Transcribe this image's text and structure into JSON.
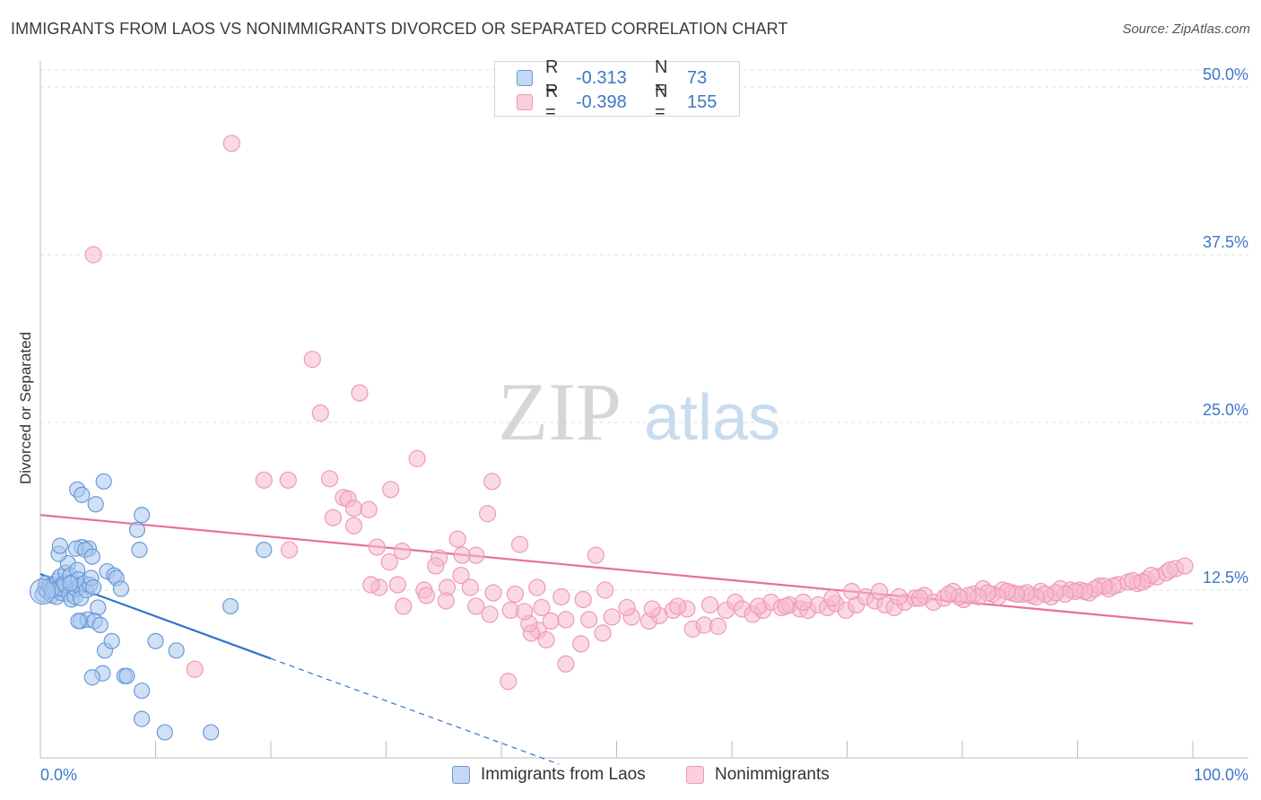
{
  "header": {
    "title": "IMMIGRANTS FROM LAOS VS NONIMMIGRANTS DIVORCED OR SEPARATED CORRELATION CHART",
    "source": "Source: ZipAtlas.com"
  },
  "watermark": {
    "zip": "ZIP",
    "atlas": "atlas"
  },
  "legend": {
    "rows": [
      {
        "r_label": "R =",
        "r_value": "-0.313",
        "n_label": "N =",
        "n_value": "73"
      },
      {
        "r_label": "R =",
        "r_value": "-0.398",
        "n_label": "N =",
        "n_value": "155"
      }
    ]
  },
  "bottom_legend": {
    "laos": "Immigrants from Laos",
    "non": "Nonimmigrants"
  },
  "colors": {
    "laos_fill": "#a9c8ee",
    "laos_stroke": "#6a9ad6",
    "laos_line": "#2f72cc",
    "non_fill": "#f6b9cc",
    "non_stroke": "#ef9ab5",
    "non_line": "#e8709a",
    "tick_text": "#3d78c4",
    "grid": "#dcdcdc"
  },
  "chart_data": {
    "type": "scatter",
    "title": "IMMIGRANTS FROM LAOS VS NONIMMIGRANTS DIVORCED OR SEPARATED CORRELATION CHART",
    "xlabel": "",
    "ylabel": "Divorced or Separated",
    "xlim": [
      0,
      100
    ],
    "ylim": [
      0,
      52
    ],
    "x_tick_labels": [
      "0.0%",
      "100.0%"
    ],
    "y_ticks": [
      12.5,
      25.0,
      37.5,
      50.0
    ],
    "y_tick_labels": [
      "12.5%",
      "25.0%",
      "37.5%",
      "50.0%"
    ],
    "grid": true,
    "legend_position": "top-center",
    "series": [
      {
        "name": "Immigrants from Laos",
        "r": -0.313,
        "n": 73,
        "trend": {
          "x0": 0,
          "y0": 13.7,
          "x1": 20,
          "y1": 7.4,
          "dash_to_x": 45
        },
        "points": [
          [
            0.2,
            12.2
          ],
          [
            0.4,
            12.6
          ],
          [
            0.5,
            13.0
          ],
          [
            0.6,
            12.4
          ],
          [
            0.8,
            12.8
          ],
          [
            1.0,
            12.1
          ],
          [
            1.2,
            12.9
          ],
          [
            1.3,
            12.5
          ],
          [
            1.4,
            12.0
          ],
          [
            1.5,
            13.2
          ],
          [
            1.6,
            12.7
          ],
          [
            1.7,
            13.5
          ],
          [
            1.8,
            12.3
          ],
          [
            1.9,
            12.6
          ],
          [
            2.0,
            13.0
          ],
          [
            2.1,
            12.9
          ],
          [
            2.2,
            13.8
          ],
          [
            2.4,
            14.5
          ],
          [
            2.5,
            12.2
          ],
          [
            2.6,
            13.6
          ],
          [
            2.7,
            11.8
          ],
          [
            2.8,
            13.1
          ],
          [
            3.0,
            12.0
          ],
          [
            3.1,
            12.6
          ],
          [
            3.2,
            14.0
          ],
          [
            3.3,
            13.3
          ],
          [
            3.4,
            12.8
          ],
          [
            3.5,
            11.9
          ],
          [
            3.6,
            15.7
          ],
          [
            3.8,
            13.0
          ],
          [
            4.0,
            12.5
          ],
          [
            4.2,
            15.6
          ],
          [
            4.3,
            12.9
          ],
          [
            4.4,
            13.4
          ],
          [
            4.6,
            12.7
          ],
          [
            1.6,
            15.2
          ],
          [
            1.7,
            15.8
          ],
          [
            3.1,
            15.6
          ],
          [
            3.9,
            15.5
          ],
          [
            4.5,
            15.0
          ],
          [
            3.2,
            20.0
          ],
          [
            3.6,
            19.6
          ],
          [
            4.8,
            18.9
          ],
          [
            5.5,
            20.6
          ],
          [
            5.8,
            13.9
          ],
          [
            6.4,
            13.6
          ],
          [
            6.6,
            13.4
          ],
          [
            7.0,
            12.6
          ],
          [
            5.0,
            11.2
          ],
          [
            3.5,
            10.2
          ],
          [
            4.1,
            10.3
          ],
          [
            4.7,
            10.2
          ],
          [
            5.2,
            9.9
          ],
          [
            8.4,
            17.0
          ],
          [
            8.6,
            15.5
          ],
          [
            8.8,
            18.1
          ],
          [
            5.6,
            8.0
          ],
          [
            6.2,
            8.7
          ],
          [
            10.0,
            8.7
          ],
          [
            11.8,
            8.0
          ],
          [
            5.4,
            6.3
          ],
          [
            4.5,
            6.0
          ],
          [
            7.3,
            6.1
          ],
          [
            7.5,
            6.1
          ],
          [
            8.8,
            5.0
          ],
          [
            8.8,
            2.9
          ],
          [
            10.8,
            1.9
          ],
          [
            14.8,
            1.9
          ],
          [
            16.5,
            11.3
          ],
          [
            19.4,
            15.5
          ],
          [
            3.3,
            10.2
          ],
          [
            2.6,
            13.0
          ],
          [
            1.0,
            12.5
          ]
        ]
      },
      {
        "name": "Nonimmigrants",
        "r": -0.398,
        "n": 155,
        "trend": {
          "x0": 0,
          "y0": 18.1,
          "x1": 100,
          "y1": 10.0
        },
        "points": [
          [
            16.6,
            45.8
          ],
          [
            4.6,
            37.5
          ],
          [
            23.6,
            29.7
          ],
          [
            27.7,
            27.2
          ],
          [
            24.3,
            25.7
          ],
          [
            32.7,
            22.3
          ],
          [
            19.4,
            20.7
          ],
          [
            21.5,
            20.7
          ],
          [
            25.1,
            20.8
          ],
          [
            39.2,
            20.6
          ],
          [
            30.4,
            20.0
          ],
          [
            26.3,
            19.4
          ],
          [
            26.7,
            19.3
          ],
          [
            27.2,
            18.6
          ],
          [
            28.5,
            18.5
          ],
          [
            38.8,
            18.2
          ],
          [
            25.4,
            17.9
          ],
          [
            27.2,
            17.3
          ],
          [
            36.2,
            16.3
          ],
          [
            41.6,
            15.9
          ],
          [
            29.2,
            15.7
          ],
          [
            31.4,
            15.4
          ],
          [
            21.6,
            15.5
          ],
          [
            37.8,
            15.1
          ],
          [
            36.6,
            15.1
          ],
          [
            34.6,
            14.9
          ],
          [
            30.3,
            14.6
          ],
          [
            34.3,
            14.3
          ],
          [
            48.2,
            15.1
          ],
          [
            36.5,
            13.6
          ],
          [
            13.4,
            6.6
          ],
          [
            40.6,
            5.7
          ],
          [
            43.2,
            9.5
          ],
          [
            42.6,
            9.3
          ],
          [
            43.9,
            8.8
          ],
          [
            45.6,
            7.0
          ],
          [
            46.9,
            8.5
          ],
          [
            48.8,
            9.3
          ],
          [
            42.4,
            10.0
          ],
          [
            44.3,
            10.2
          ],
          [
            45.6,
            10.3
          ],
          [
            47.6,
            10.3
          ],
          [
            49.6,
            10.5
          ],
          [
            51.3,
            10.5
          ],
          [
            52.8,
            10.2
          ],
          [
            53.7,
            10.6
          ],
          [
            54.9,
            11.0
          ],
          [
            56.1,
            11.1
          ],
          [
            56.6,
            9.6
          ],
          [
            57.6,
            9.9
          ],
          [
            58.8,
            9.8
          ],
          [
            59.5,
            11.0
          ],
          [
            60.3,
            11.6
          ],
          [
            60.9,
            11.1
          ],
          [
            61.8,
            10.7
          ],
          [
            62.7,
            11.0
          ],
          [
            63.4,
            11.6
          ],
          [
            64.3,
            11.2
          ],
          [
            65.0,
            11.4
          ],
          [
            65.9,
            11.1
          ],
          [
            66.6,
            11.0
          ],
          [
            67.5,
            11.4
          ],
          [
            68.3,
            11.2
          ],
          [
            69.0,
            11.5
          ],
          [
            69.9,
            11.0
          ],
          [
            70.8,
            11.4
          ],
          [
            71.6,
            12.0
          ],
          [
            72.4,
            11.7
          ],
          [
            73.3,
            11.4
          ],
          [
            74.1,
            11.2
          ],
          [
            75.0,
            11.6
          ],
          [
            75.9,
            11.9
          ],
          [
            76.7,
            12.1
          ],
          [
            77.5,
            11.6
          ],
          [
            78.4,
            11.9
          ],
          [
            79.2,
            12.4
          ],
          [
            80.1,
            11.8
          ],
          [
            81.0,
            12.2
          ],
          [
            81.8,
            12.6
          ],
          [
            82.6,
            12.2
          ],
          [
            83.5,
            12.5
          ],
          [
            84.3,
            12.3
          ],
          [
            85.2,
            12.2
          ],
          [
            86.0,
            12.1
          ],
          [
            86.8,
            12.4
          ],
          [
            87.7,
            12.0
          ],
          [
            88.5,
            12.6
          ],
          [
            89.4,
            12.5
          ],
          [
            90.2,
            12.5
          ],
          [
            91.0,
            12.3
          ],
          [
            91.9,
            12.8
          ],
          [
            92.7,
            12.6
          ],
          [
            93.5,
            12.9
          ],
          [
            94.4,
            13.1
          ],
          [
            95.2,
            13.0
          ],
          [
            96.0,
            13.3
          ],
          [
            96.9,
            13.5
          ],
          [
            97.7,
            13.8
          ],
          [
            98.5,
            14.1
          ],
          [
            99.3,
            14.3
          ],
          [
            98.0,
            14.0
          ],
          [
            96.4,
            13.6
          ],
          [
            95.6,
            13.1
          ],
          [
            94.8,
            13.2
          ],
          [
            93.1,
            12.8
          ],
          [
            92.3,
            12.8
          ],
          [
            91.5,
            12.6
          ],
          [
            90.6,
            12.4
          ],
          [
            89.8,
            12.4
          ],
          [
            88.9,
            12.2
          ],
          [
            88.1,
            12.3
          ],
          [
            87.2,
            12.2
          ],
          [
            86.4,
            12.0
          ],
          [
            85.6,
            12.3
          ],
          [
            84.7,
            12.2
          ],
          [
            83.9,
            12.4
          ],
          [
            83.1,
            12.0
          ],
          [
            82.2,
            12.3
          ],
          [
            81.4,
            12.0
          ],
          [
            80.5,
            12.1
          ],
          [
            79.7,
            12.0
          ],
          [
            78.8,
            12.2
          ],
          [
            76.3,
            11.9
          ],
          [
            74.5,
            12.0
          ],
          [
            72.8,
            12.4
          ],
          [
            70.4,
            12.4
          ],
          [
            68.7,
            11.9
          ],
          [
            66.2,
            11.6
          ],
          [
            64.7,
            11.3
          ],
          [
            62.3,
            11.3
          ],
          [
            58.1,
            11.4
          ],
          [
            55.3,
            11.3
          ],
          [
            53.1,
            11.1
          ],
          [
            50.9,
            11.2
          ],
          [
            49.0,
            12.5
          ],
          [
            47.1,
            11.8
          ],
          [
            45.2,
            12.0
          ],
          [
            43.1,
            12.7
          ],
          [
            41.2,
            12.2
          ],
          [
            39.3,
            12.3
          ],
          [
            37.3,
            12.7
          ],
          [
            35.3,
            12.7
          ],
          [
            33.3,
            12.5
          ],
          [
            31.0,
            12.9
          ],
          [
            29.4,
            12.7
          ],
          [
            28.7,
            12.9
          ],
          [
            31.5,
            11.3
          ],
          [
            33.5,
            12.1
          ],
          [
            35.2,
            11.7
          ],
          [
            37.8,
            11.3
          ],
          [
            39.0,
            10.7
          ],
          [
            40.8,
            11.0
          ],
          [
            42.0,
            10.9
          ],
          [
            43.5,
            11.2
          ]
        ]
      }
    ]
  }
}
